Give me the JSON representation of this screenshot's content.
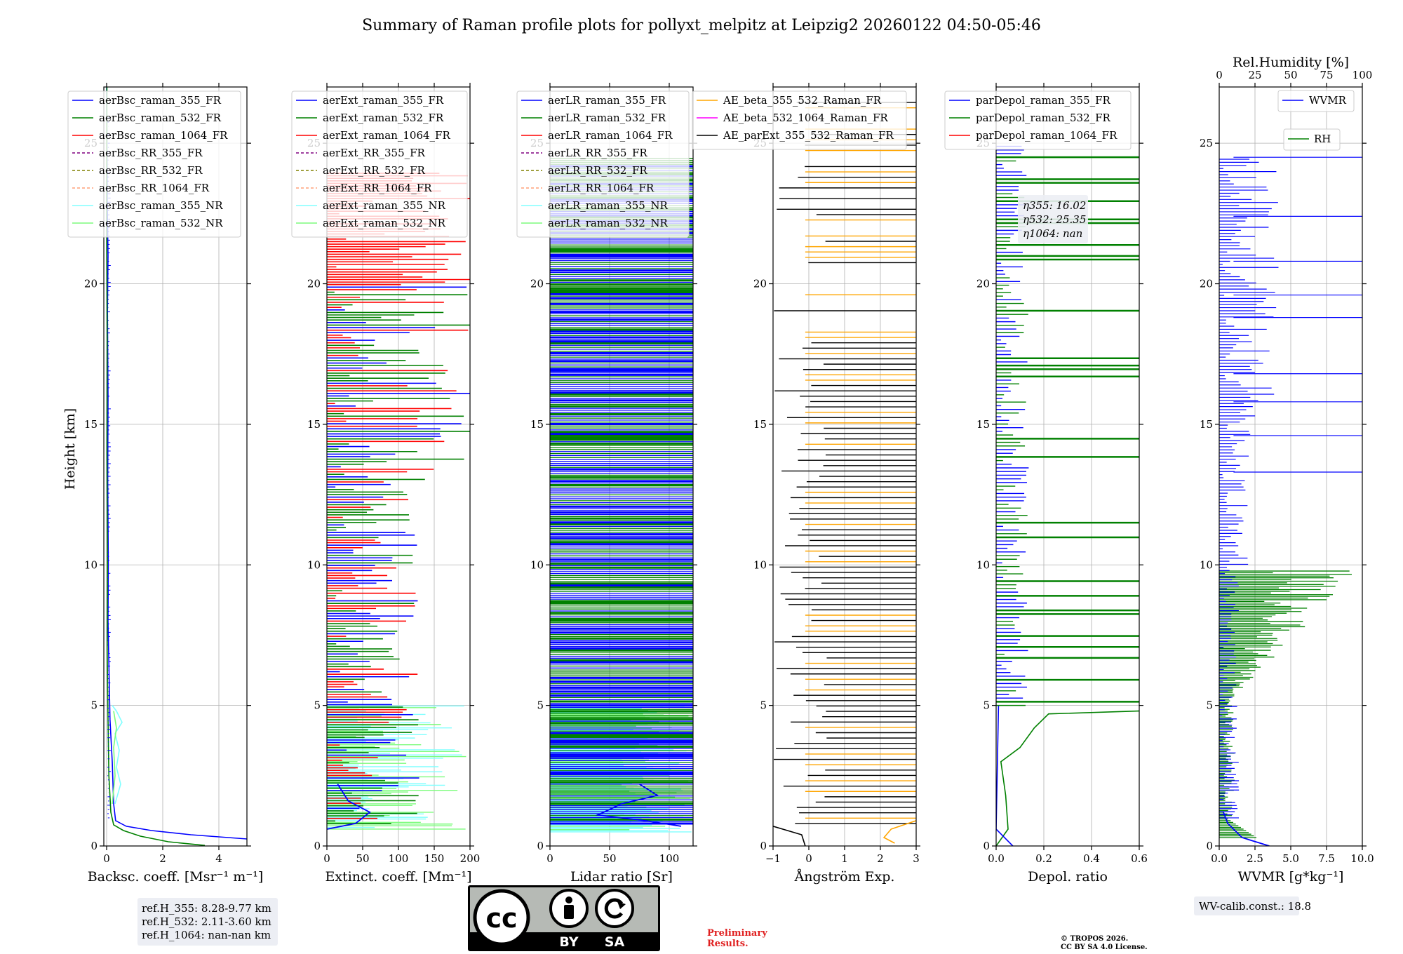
{
  "title": "Summary of Raman profile plots for pollyxt_melpitz at Leipzig2 20260122 04:50-05:46",
  "colors": {
    "c355": "#0000ff",
    "c532": "#008000",
    "c1064": "#ff0000",
    "cRR355": "#800080",
    "cRR532": "#808000",
    "cRR1064": "#ffa07a",
    "cNR355": "#80ffff",
    "cNR532": "#7cfc7c",
    "orange": "#ffa500",
    "magenta": "#ff00ff",
    "black": "#000000"
  },
  "chart_data": [
    {
      "type": "line",
      "id": "bsc",
      "xlabel": "Backsc. coeff. [Msr⁻¹ m⁻¹]",
      "ylabel": "Height [km]",
      "xlim": [
        -0.1,
        5
      ],
      "ylim": [
        0,
        27
      ],
      "xticks": [
        0,
        2,
        4
      ],
      "yticks": [
        0,
        5,
        10,
        15,
        20,
        25
      ],
      "legend": [
        "aerBsc_raman_355_FR",
        "aerBsc_raman_532_FR",
        "aerBsc_raman_1064_FR",
        "aerBsc_RR_355_FR",
        "aerBsc_RR_532_FR",
        "aerBsc_RR_1064_FR",
        "aerBsc_raman_355_NR",
        "aerBsc_raman_532_NR"
      ],
      "series": [
        {
          "name": "aerBsc_raman_355_FR",
          "color": "#0000ff",
          "points": [
            [
              5.0,
              0.25
            ],
            [
              3.0,
              0.4
            ],
            [
              1.6,
              0.55
            ],
            [
              0.7,
              0.7
            ],
            [
              0.32,
              0.9
            ],
            [
              0.25,
              1.5
            ],
            [
              0.2,
              3
            ],
            [
              0.12,
              4.5
            ],
            [
              0.1,
              5.5
            ],
            [
              0.05,
              8
            ],
            [
              0.06,
              10
            ],
            [
              0.04,
              13
            ],
            [
              0.05,
              16
            ],
            [
              0.03,
              19
            ],
            [
              0.05,
              21
            ],
            [
              0.02,
              23
            ],
            [
              0.0,
              27
            ]
          ]
        },
        {
          "name": "aerBsc_raman_532_FR",
          "color": "#008000",
          "points": [
            [
              3.5,
              0.02
            ],
            [
              2.2,
              0.15
            ],
            [
              1.2,
              0.35
            ],
            [
              0.6,
              0.55
            ],
            [
              0.25,
              0.75
            ],
            [
              0.15,
              1.2
            ],
            [
              0.08,
              2.5
            ],
            [
              0.05,
              4.5
            ],
            [
              0.02,
              7
            ],
            [
              0.03,
              10
            ],
            [
              0.01,
              14
            ],
            [
              0.02,
              18
            ],
            [
              0.0,
              22
            ],
            [
              0.01,
              27
            ]
          ]
        },
        {
          "name": "aerBsc_raman_355_NR",
          "color": "#80ffff",
          "points": [
            [
              0.3,
              1.5
            ],
            [
              0.5,
              2.2
            ],
            [
              0.35,
              2.8
            ],
            [
              0.45,
              3.4
            ],
            [
              0.3,
              4
            ],
            [
              0.55,
              4.4
            ],
            [
              0.35,
              4.8
            ],
            [
              0.2,
              5
            ]
          ]
        },
        {
          "name": "aerBsc_raman_532_NR",
          "color": "#7cfc7c",
          "points": [
            [
              0.2,
              1.5
            ],
            [
              0.3,
              2.5
            ],
            [
              0.25,
              3.5
            ],
            [
              0.35,
              4.2
            ],
            [
              0.25,
              4.8
            ]
          ]
        }
      ],
      "annotation": [
        "ref.H_355: 8.28-9.77 km",
        "ref.H_532: 2.11-3.60 km",
        "ref.H_1064: nan-nan km"
      ]
    },
    {
      "type": "line",
      "id": "ext",
      "xlabel": "Extinct. coeff. [Mm⁻¹]",
      "xlim": [
        0,
        200
      ],
      "ylim": [
        0,
        27
      ],
      "xticks": [
        0,
        50,
        100,
        150,
        200
      ],
      "yticks": [
        0,
        5,
        10,
        15,
        20,
        25
      ],
      "legend": [
        "aerExt_raman_355_FR",
        "aerExt_raman_532_FR",
        "aerExt_raman_1064_FR",
        "aerExt_RR_355_FR",
        "aerExt_RR_532_FR",
        "aerExt_RR_1064_FR",
        "aerExt_raman_355_NR",
        "aerExt_raman_532_NR"
      ]
    },
    {
      "type": "line",
      "id": "lr",
      "xlabel": "Lidar ratio [Sr]",
      "xlim": [
        0,
        120
      ],
      "ylim": [
        0,
        27
      ],
      "xticks": [
        0,
        50,
        100
      ],
      "yticks": [
        0,
        5,
        10,
        15,
        20,
        25
      ],
      "legend": [
        "aerLR_raman_355_FR",
        "aerLR_raman_532_FR",
        "aerLR_raman_1064_FR",
        "aerLR_RR_355_FR",
        "aerLR_RR_532_FR",
        "aerLR_RR_1064_FR",
        "aerLR_raman_355_NR",
        "aerLR_raman_532_NR"
      ]
    },
    {
      "type": "line",
      "id": "ae",
      "xlabel": "Ångström Exp.",
      "xlim": [
        -1,
        3
      ],
      "ylim": [
        0,
        27
      ],
      "xticks": [
        -1,
        0,
        1,
        2,
        3
      ],
      "yticks": [
        0,
        5,
        10,
        15,
        20,
        25
      ],
      "legend": [
        "AE_beta_355_532_Raman_FR",
        "AE_beta_532_1064_Raman_FR",
        "AE_parExt_355_532_Raman_FR"
      ]
    },
    {
      "type": "line",
      "id": "dep",
      "xlabel": "Depol. ratio",
      "xlim": [
        0,
        0.6
      ],
      "ylim": [
        0,
        27
      ],
      "xticks": [
        0.0,
        0.2,
        0.4,
        0.6
      ],
      "yticks": [
        0,
        5,
        10,
        15,
        20,
        25
      ],
      "legend": [
        "parDepol_raman_355_FR",
        "parDepol_raman_532_FR",
        "parDepol_raman_1064_FR"
      ],
      "annotation": [
        "η355: 16.02",
        "η532: 25.35",
        "η1064: nan"
      ]
    },
    {
      "type": "line",
      "id": "wv",
      "xlabel": "WVMR [g*kg⁻¹]",
      "toplabel": "Rel.Humidity [%]",
      "xlim": [
        0,
        10
      ],
      "toplim": [
        0,
        100
      ],
      "ylim": [
        0,
        27
      ],
      "xticks": [
        0.0,
        2.5,
        5.0,
        7.5,
        10.0
      ],
      "topticks": [
        0,
        25,
        50,
        75,
        100
      ],
      "yticks": [
        0,
        5,
        10,
        15,
        20,
        25
      ],
      "legend": [
        "WVMR",
        "RH"
      ],
      "annotation": [
        "WV-calib.const.: 18.8"
      ]
    }
  ],
  "xtick_labels": {
    "bsc": [
      "0",
      "2",
      "4"
    ],
    "ext": [
      "0",
      "50",
      "100",
      "150",
      "200"
    ],
    "lr": [
      "0",
      "50",
      "100"
    ],
    "ae": [
      "−1",
      "0",
      "1",
      "2",
      "3"
    ],
    "dep": [
      "0.0",
      "0.2",
      "0.4",
      "0.6"
    ],
    "wv": [
      "0.0",
      "2.5",
      "5.0",
      "7.5",
      "10.0"
    ],
    "rh": [
      "0",
      "25",
      "50",
      "75",
      "100"
    ]
  },
  "ytick_labels": [
    "0",
    "5",
    "10",
    "15",
    "20",
    "25"
  ],
  "license": {
    "cc": "cc",
    "by": "BY",
    "sa": "SA"
  },
  "preliminary": [
    "Preliminary",
    "Results."
  ],
  "copyright": [
    "© TROPOS 2026.",
    "CC BY SA 4.0 License."
  ]
}
